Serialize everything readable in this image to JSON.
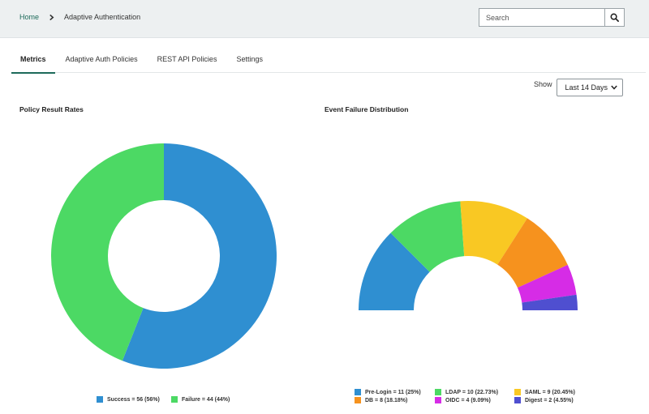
{
  "breadcrumb": {
    "home": "Home",
    "current": "Adaptive Authentication"
  },
  "search": {
    "placeholder": "Search",
    "value": ""
  },
  "tabs": [
    {
      "label": "Metrics",
      "active": true
    },
    {
      "label": "Adaptive Auth Policies",
      "active": false
    },
    {
      "label": "REST API Policies",
      "active": false
    },
    {
      "label": "Settings",
      "active": false
    }
  ],
  "filter": {
    "label": "Show",
    "selected": "Last 14 Days"
  },
  "colors": {
    "accent": "#1d6a5a",
    "blue": "#2f8fd1",
    "green": "#4cd964",
    "yellow": "#f9c823",
    "orange": "#f6921e",
    "magenta": "#d62ce6",
    "indigo": "#4f4fd0"
  },
  "chart_data": [
    {
      "type": "pie",
      "title": "Policy Result Rates",
      "series": [
        {
          "name": "Success",
          "value": 56,
          "percent": 56,
          "color": "#2f8fd1",
          "legend": "Success = 56 (56%)"
        },
        {
          "name": "Failure",
          "value": 44,
          "percent": 44,
          "color": "#4cd964",
          "legend": "Failure = 44 (44%)"
        }
      ]
    },
    {
      "type": "pie",
      "title": "Event Failure Distribution",
      "half_donut": true,
      "series": [
        {
          "name": "Pre-Login",
          "value": 11,
          "percent": 25,
          "color": "#2f8fd1",
          "legend": "Pre-Login = 11 (25%)"
        },
        {
          "name": "LDAP",
          "value": 10,
          "percent": 22.73,
          "color": "#4cd964",
          "legend": "LDAP = 10 (22.73%)"
        },
        {
          "name": "SAML",
          "value": 9,
          "percent": 20.45,
          "color": "#f9c823",
          "legend": "SAML = 9 (20.45%)"
        },
        {
          "name": "DB",
          "value": 8,
          "percent": 18.18,
          "color": "#f6921e",
          "legend": "DB = 8 (18.18%)"
        },
        {
          "name": "OIDC",
          "value": 4,
          "percent": 9.09,
          "color": "#d62ce6",
          "legend": "OIDC = 4 (9.09%)"
        },
        {
          "name": "Digest",
          "value": 2,
          "percent": 4.55,
          "color": "#4f4fd0",
          "legend": "Digest = 2 (4.55%)"
        }
      ]
    }
  ]
}
